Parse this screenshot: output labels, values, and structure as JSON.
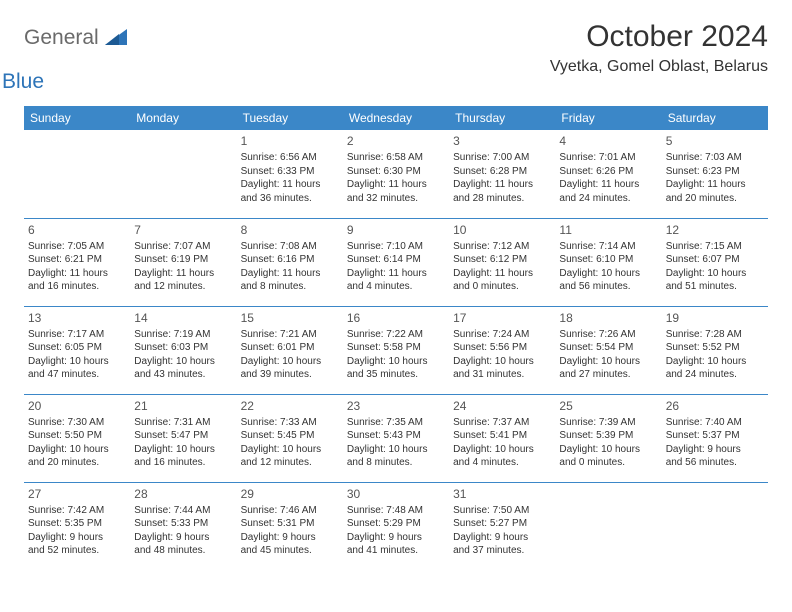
{
  "header": {
    "logo_general": "General",
    "logo_blue": "Blue",
    "month_title": "October 2024",
    "location": "Vyetka, Gomel Oblast, Belarus"
  },
  "colors": {
    "header_bg": "#3b87c8",
    "header_text": "#ffffff",
    "grid_line": "#3b87c8",
    "logo_gray": "#6a6a6a",
    "logo_blue": "#2d74b8",
    "text": "#333333",
    "background": "#ffffff"
  },
  "weekdays": [
    "Sunday",
    "Monday",
    "Tuesday",
    "Wednesday",
    "Thursday",
    "Friday",
    "Saturday"
  ],
  "weeks": [
    [
      null,
      null,
      {
        "day": "1",
        "sunrise": "Sunrise: 6:56 AM",
        "sunset": "Sunset: 6:33 PM",
        "daylight1": "Daylight: 11 hours",
        "daylight2": "and 36 minutes."
      },
      {
        "day": "2",
        "sunrise": "Sunrise: 6:58 AM",
        "sunset": "Sunset: 6:30 PM",
        "daylight1": "Daylight: 11 hours",
        "daylight2": "and 32 minutes."
      },
      {
        "day": "3",
        "sunrise": "Sunrise: 7:00 AM",
        "sunset": "Sunset: 6:28 PM",
        "daylight1": "Daylight: 11 hours",
        "daylight2": "and 28 minutes."
      },
      {
        "day": "4",
        "sunrise": "Sunrise: 7:01 AM",
        "sunset": "Sunset: 6:26 PM",
        "daylight1": "Daylight: 11 hours",
        "daylight2": "and 24 minutes."
      },
      {
        "day": "5",
        "sunrise": "Sunrise: 7:03 AM",
        "sunset": "Sunset: 6:23 PM",
        "daylight1": "Daylight: 11 hours",
        "daylight2": "and 20 minutes."
      }
    ],
    [
      {
        "day": "6",
        "sunrise": "Sunrise: 7:05 AM",
        "sunset": "Sunset: 6:21 PM",
        "daylight1": "Daylight: 11 hours",
        "daylight2": "and 16 minutes."
      },
      {
        "day": "7",
        "sunrise": "Sunrise: 7:07 AM",
        "sunset": "Sunset: 6:19 PM",
        "daylight1": "Daylight: 11 hours",
        "daylight2": "and 12 minutes."
      },
      {
        "day": "8",
        "sunrise": "Sunrise: 7:08 AM",
        "sunset": "Sunset: 6:16 PM",
        "daylight1": "Daylight: 11 hours",
        "daylight2": "and 8 minutes."
      },
      {
        "day": "9",
        "sunrise": "Sunrise: 7:10 AM",
        "sunset": "Sunset: 6:14 PM",
        "daylight1": "Daylight: 11 hours",
        "daylight2": "and 4 minutes."
      },
      {
        "day": "10",
        "sunrise": "Sunrise: 7:12 AM",
        "sunset": "Sunset: 6:12 PM",
        "daylight1": "Daylight: 11 hours",
        "daylight2": "and 0 minutes."
      },
      {
        "day": "11",
        "sunrise": "Sunrise: 7:14 AM",
        "sunset": "Sunset: 6:10 PM",
        "daylight1": "Daylight: 10 hours",
        "daylight2": "and 56 minutes."
      },
      {
        "day": "12",
        "sunrise": "Sunrise: 7:15 AM",
        "sunset": "Sunset: 6:07 PM",
        "daylight1": "Daylight: 10 hours",
        "daylight2": "and 51 minutes."
      }
    ],
    [
      {
        "day": "13",
        "sunrise": "Sunrise: 7:17 AM",
        "sunset": "Sunset: 6:05 PM",
        "daylight1": "Daylight: 10 hours",
        "daylight2": "and 47 minutes."
      },
      {
        "day": "14",
        "sunrise": "Sunrise: 7:19 AM",
        "sunset": "Sunset: 6:03 PM",
        "daylight1": "Daylight: 10 hours",
        "daylight2": "and 43 minutes."
      },
      {
        "day": "15",
        "sunrise": "Sunrise: 7:21 AM",
        "sunset": "Sunset: 6:01 PM",
        "daylight1": "Daylight: 10 hours",
        "daylight2": "and 39 minutes."
      },
      {
        "day": "16",
        "sunrise": "Sunrise: 7:22 AM",
        "sunset": "Sunset: 5:58 PM",
        "daylight1": "Daylight: 10 hours",
        "daylight2": "and 35 minutes."
      },
      {
        "day": "17",
        "sunrise": "Sunrise: 7:24 AM",
        "sunset": "Sunset: 5:56 PM",
        "daylight1": "Daylight: 10 hours",
        "daylight2": "and 31 minutes."
      },
      {
        "day": "18",
        "sunrise": "Sunrise: 7:26 AM",
        "sunset": "Sunset: 5:54 PM",
        "daylight1": "Daylight: 10 hours",
        "daylight2": "and 27 minutes."
      },
      {
        "day": "19",
        "sunrise": "Sunrise: 7:28 AM",
        "sunset": "Sunset: 5:52 PM",
        "daylight1": "Daylight: 10 hours",
        "daylight2": "and 24 minutes."
      }
    ],
    [
      {
        "day": "20",
        "sunrise": "Sunrise: 7:30 AM",
        "sunset": "Sunset: 5:50 PM",
        "daylight1": "Daylight: 10 hours",
        "daylight2": "and 20 minutes."
      },
      {
        "day": "21",
        "sunrise": "Sunrise: 7:31 AM",
        "sunset": "Sunset: 5:47 PM",
        "daylight1": "Daylight: 10 hours",
        "daylight2": "and 16 minutes."
      },
      {
        "day": "22",
        "sunrise": "Sunrise: 7:33 AM",
        "sunset": "Sunset: 5:45 PM",
        "daylight1": "Daylight: 10 hours",
        "daylight2": "and 12 minutes."
      },
      {
        "day": "23",
        "sunrise": "Sunrise: 7:35 AM",
        "sunset": "Sunset: 5:43 PM",
        "daylight1": "Daylight: 10 hours",
        "daylight2": "and 8 minutes."
      },
      {
        "day": "24",
        "sunrise": "Sunrise: 7:37 AM",
        "sunset": "Sunset: 5:41 PM",
        "daylight1": "Daylight: 10 hours",
        "daylight2": "and 4 minutes."
      },
      {
        "day": "25",
        "sunrise": "Sunrise: 7:39 AM",
        "sunset": "Sunset: 5:39 PM",
        "daylight1": "Daylight: 10 hours",
        "daylight2": "and 0 minutes."
      },
      {
        "day": "26",
        "sunrise": "Sunrise: 7:40 AM",
        "sunset": "Sunset: 5:37 PM",
        "daylight1": "Daylight: 9 hours",
        "daylight2": "and 56 minutes."
      }
    ],
    [
      {
        "day": "27",
        "sunrise": "Sunrise: 7:42 AM",
        "sunset": "Sunset: 5:35 PM",
        "daylight1": "Daylight: 9 hours",
        "daylight2": "and 52 minutes."
      },
      {
        "day": "28",
        "sunrise": "Sunrise: 7:44 AM",
        "sunset": "Sunset: 5:33 PM",
        "daylight1": "Daylight: 9 hours",
        "daylight2": "and 48 minutes."
      },
      {
        "day": "29",
        "sunrise": "Sunrise: 7:46 AM",
        "sunset": "Sunset: 5:31 PM",
        "daylight1": "Daylight: 9 hours",
        "daylight2": "and 45 minutes."
      },
      {
        "day": "30",
        "sunrise": "Sunrise: 7:48 AM",
        "sunset": "Sunset: 5:29 PM",
        "daylight1": "Daylight: 9 hours",
        "daylight2": "and 41 minutes."
      },
      {
        "day": "31",
        "sunrise": "Sunrise: 7:50 AM",
        "sunset": "Sunset: 5:27 PM",
        "daylight1": "Daylight: 9 hours",
        "daylight2": "and 37 minutes."
      },
      null,
      null
    ]
  ]
}
